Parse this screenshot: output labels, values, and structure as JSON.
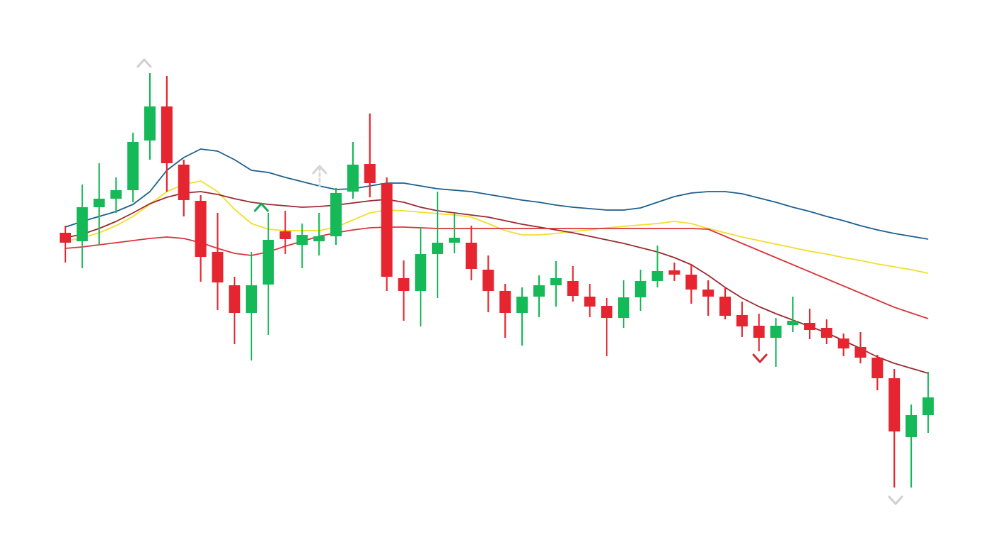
{
  "chart_data": {
    "type": "candlestick",
    "categories": [
      null,
      null,
      null,
      null,
      null,
      null,
      null,
      null,
      null,
      null,
      null,
      null,
      null,
      null,
      null,
      null,
      null,
      null,
      null,
      null,
      null,
      null,
      null,
      null,
      null,
      null,
      null,
      null,
      null,
      null,
      null,
      null,
      null,
      null,
      null,
      null,
      null,
      null,
      null,
      null,
      null,
      null,
      null,
      null,
      null,
      null,
      null,
      null,
      null,
      null,
      null,
      null
    ],
    "open": [
      440,
      428,
      476,
      488,
      500,
      570,
      618,
      536,
      485,
      413,
      366,
      327,
      367,
      442,
      423,
      428,
      435,
      498,
      537,
      510,
      376,
      358,
      410,
      426,
      426,
      388,
      358,
      327,
      350,
      366,
      372,
      350,
      337,
      320,
      349,
      372,
      387,
      381,
      360,
      350,
      324,
      309,
      292,
      310,
      313,
      306,
      291,
      279,
      264,
      235,
      152,
      183
    ],
    "high": [
      450,
      508,
      538,
      518,
      581,
      665,
      661,
      543,
      493,
      468,
      378,
      413,
      468,
      471,
      453,
      468,
      503,
      568,
      608,
      518,
      401,
      448,
      498,
      468,
      450,
      408,
      368,
      363,
      380,
      400,
      393,
      368,
      348,
      373,
      388,
      422,
      398,
      396,
      373,
      363,
      343,
      326,
      320,
      350,
      333,
      318,
      298,
      300,
      268,
      248,
      198,
      244
    ],
    "low": [
      398,
      390,
      423,
      468,
      483,
      543,
      498,
      463,
      371,
      331,
      283,
      260,
      296,
      410,
      390,
      408,
      423,
      488,
      490,
      358,
      316,
      308,
      348,
      411,
      373,
      328,
      292,
      281,
      321,
      336,
      343,
      321,
      266,
      306,
      330,
      363,
      372,
      340,
      323,
      318,
      293,
      273,
      251,
      300,
      290,
      283,
      266,
      256,
      218,
      81,
      81,
      158
    ],
    "close": [
      426,
      476,
      488,
      500,
      568,
      618,
      538,
      486,
      406,
      370,
      327,
      366,
      430,
      431,
      437,
      435,
      496,
      536,
      510,
      378,
      358,
      410,
      426,
      433,
      389,
      358,
      327,
      350,
      366,
      376,
      351,
      336,
      320,
      349,
      372,
      386,
      381,
      360,
      350,
      323,
      308,
      292,
      309,
      316,
      303,
      292,
      277,
      264,
      235,
      160,
      183,
      208
    ],
    "up_color": "#16b957",
    "down_color": "#e5252f",
    "series": [
      {
        "color": "#1d5f8e",
        "values": [
          448,
          456,
          463,
          470,
          480,
          498,
          528,
          546,
          558,
          555,
          543,
          528,
          525,
          518,
          512,
          506,
          501,
          502,
          506,
          510,
          510,
          506,
          502,
          500,
          498,
          494,
          490,
          486,
          483,
          479,
          476,
          474,
          472,
          472,
          475,
          483,
          491,
          496,
          498,
          498,
          495,
          489,
          483,
          476,
          470,
          463,
          457,
          450,
          444,
          439,
          435,
          431
        ]
      },
      {
        "color": "#f4dd2a",
        "values": [
          428,
          433,
          440,
          450,
          463,
          480,
          498,
          508,
          513,
          498,
          473,
          453,
          445,
          443,
          443,
          443,
          448,
          458,
          468,
          472,
          471,
          469,
          467,
          465,
          462,
          453,
          443,
          437,
          437,
          439,
          442,
          444,
          447,
          449,
          451,
          453,
          456,
          453,
          446,
          440,
          434,
          429,
          424,
          419,
          414,
          410,
          405,
          401,
          396,
          392,
          388,
          383
        ]
      },
      {
        "color": "#9a2a30",
        "values": [
          433,
          438,
          446,
          456,
          468,
          481,
          490,
          496,
          498,
          494,
          488,
          483,
          480,
          478,
          476,
          477,
          479,
          482,
          485,
          487,
          483,
          476,
          471,
          468,
          465,
          462,
          457,
          452,
          448,
          444,
          440,
          435,
          430,
          425,
          419,
          413,
          405,
          395,
          380,
          363,
          348,
          336,
          326,
          317,
          308,
          299,
          288,
          277,
          265,
          256,
          249,
          242
        ]
      },
      {
        "color": "#d8363d",
        "values": [
          418,
          420,
          423,
          426,
          429,
          432,
          434,
          432,
          426,
          418,
          411,
          408,
          413,
          421,
          428,
          435,
          440,
          444,
          447,
          448,
          448,
          447,
          446,
          446,
          446,
          446,
          446,
          446,
          446,
          446,
          446,
          446,
          446,
          446,
          446,
          446,
          446,
          446,
          445,
          435,
          425,
          415,
          405,
          395,
          385,
          375,
          365,
          355,
          345,
          335,
          327,
          319
        ]
      }
    ],
    "ylim": [
      0,
      768
    ]
  }
}
